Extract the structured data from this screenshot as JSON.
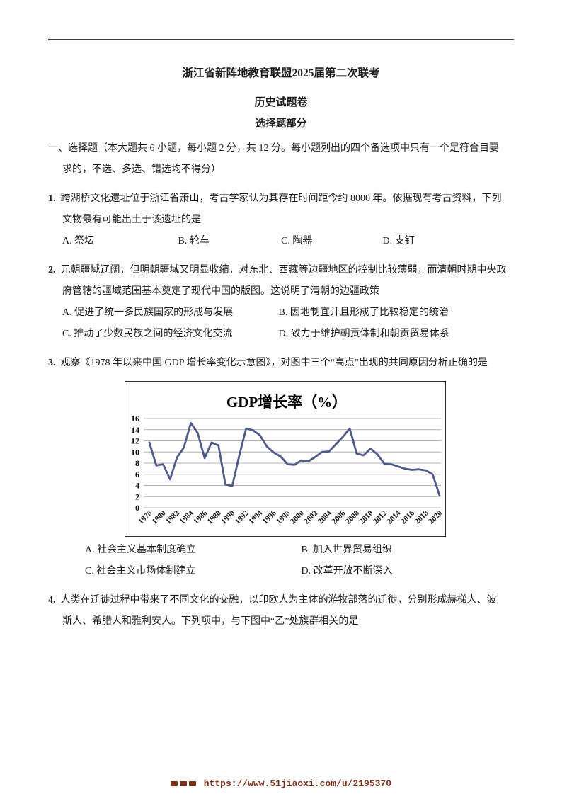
{
  "header": {
    "doc_title": "浙江省新阵地教育联盟2025届第二次联考",
    "subtitle": "历史试题卷",
    "part_label": "选择题部分"
  },
  "instructions": {
    "line1": "一、选择题（本大题共 6 小题，每小题 2 分，共 12 分。每小题列出的四个备选项中只有一个是符合目要",
    "line2": "求的，不选、多选、错选均不得分）"
  },
  "questions": [
    {
      "number": "1.",
      "stem_line1": "跨湖桥文化遗址位于浙江省萧山，考古学家认为其存在时间距今约 8000 年。依据现有考古资料，下列",
      "stem_line2": "文物最有可能出土于该遗址的是",
      "options": [
        "A. 祭坛",
        "B. 轮车",
        "C. 陶器",
        "D. 支钉"
      ]
    },
    {
      "number": "2.",
      "stem_line1": "元朝疆域辽阔，但明朝疆域又明显收缩，对东北、西藏等边疆地区的控制比较薄弱，而清朝时期中央政",
      "stem_line2": "府管辖的疆域范围基本奠定了现代中国的版图。这说明了清朝的边疆政策",
      "options": [
        "A. 促进了统一多民族国家的形成与发展",
        "B. 因地制宜并且形成了比较稳定的统治",
        "C. 推动了少数民族之间的经济文化交流",
        "D. 致力于维护朝贡体制和朝贡贸易体系"
      ]
    },
    {
      "number": "3.",
      "stem_line1": "观察《1978 年以来中国 GDP 增长率变化示意图》，对图中三个“高点”出现的共同原因分析正确的是",
      "options": [
        "A. 社会主义基本制度确立",
        "B. 加入世界贸易组织",
        "C. 社会主义市场体制建立",
        "D. 改革开放不断深入"
      ]
    },
    {
      "number": "4.",
      "stem_line1": "人类在迁徙过程中带来了不同文化的交融，以印欧人为主体的游牧部落的迁徙，分别形成赫梯人、波",
      "stem_line2": "斯人、希腊人和雅利安人。下列项中，与下图中“乙”处族群相关的是",
      "options": []
    }
  ],
  "chart_data": {
    "type": "line",
    "title": "GDP增长率（%）",
    "xlabel": "",
    "ylabel": "",
    "ylim": [
      0,
      16
    ],
    "ytick_step": 2,
    "xtick_every": 2,
    "grid": "horizontal",
    "legend": "none",
    "line_color": "#4e5a87",
    "x": [
      1978,
      1979,
      1980,
      1981,
      1982,
      1983,
      1984,
      1985,
      1986,
      1987,
      1988,
      1989,
      1990,
      1991,
      1992,
      1993,
      1994,
      1995,
      1996,
      1997,
      1998,
      1999,
      2000,
      2001,
      2002,
      2003,
      2004,
      2005,
      2006,
      2007,
      2008,
      2009,
      2010,
      2011,
      2012,
      2013,
      2014,
      2015,
      2016,
      2017,
      2018,
      2019,
      2020
    ],
    "values": [
      11.7,
      7.6,
      7.8,
      5.1,
      9.0,
      10.8,
      15.2,
      13.4,
      8.9,
      11.7,
      11.2,
      4.2,
      3.9,
      9.3,
      14.2,
      13.9,
      13.0,
      11.0,
      9.9,
      9.2,
      7.8,
      7.7,
      8.5,
      8.3,
      9.1,
      10.0,
      10.1,
      11.4,
      12.7,
      14.2,
      9.7,
      9.4,
      10.6,
      9.6,
      7.9,
      7.8,
      7.4,
      7.0,
      6.8,
      6.9,
      6.7,
      6.0,
      2.2
    ]
  },
  "footer": {
    "url": "https://www.51jiaoxi.com/u/2195370"
  }
}
